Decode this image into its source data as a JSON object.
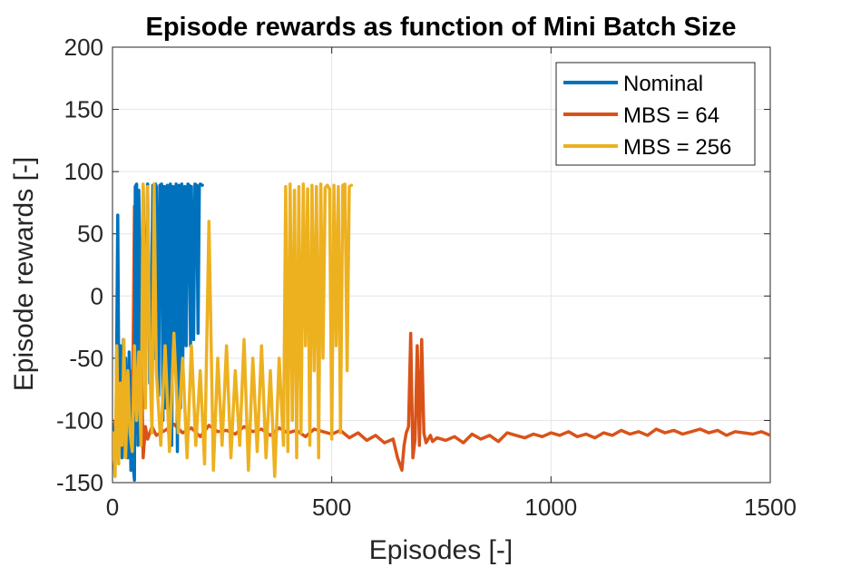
{
  "chart_data": {
    "type": "line",
    "title": "Episode rewards as function of Mini Batch Size",
    "xlabel": "Episodes [-]",
    "ylabel": "Episode rewards [-]",
    "xlim": [
      0,
      1500
    ],
    "ylim": [
      -150,
      200
    ],
    "xticks": [
      0,
      500,
      1000,
      1500
    ],
    "yticks": [
      -150,
      -100,
      -50,
      0,
      50,
      100,
      150,
      200
    ],
    "xtick_labels": [
      "0",
      "500",
      "1000",
      "1500"
    ],
    "ytick_labels": [
      "-150",
      "-100",
      "-50",
      "0",
      "50",
      "100",
      "150",
      "200"
    ],
    "grid": true,
    "legend_position": "top-right",
    "series": [
      {
        "name": "Nominal",
        "color": "#0072BD",
        "x": [
          0,
          8,
          12,
          15,
          18,
          22,
          25,
          28,
          30,
          35,
          38,
          42,
          45,
          48,
          50,
          52,
          55,
          58,
          60,
          65,
          70,
          75,
          80,
          85,
          88,
          92,
          95,
          98,
          100,
          105,
          108,
          112,
          115,
          118,
          120,
          125,
          128,
          132,
          135,
          138,
          140,
          145,
          148,
          152,
          155,
          158,
          160,
          165,
          168,
          172,
          175,
          178,
          180,
          185,
          188,
          192,
          195,
          198,
          200,
          205
        ],
        "y": [
          -105,
          -110,
          65,
          -120,
          -40,
          -130,
          -35,
          -120,
          -50,
          -130,
          -45,
          -140,
          -125,
          -140,
          -148,
          88,
          90,
          -120,
          85,
          -60,
          88,
          -40,
          90,
          -70,
          -30,
          89,
          -50,
          90,
          88,
          -80,
          89,
          90,
          -100,
          88,
          -90,
          89,
          -110,
          90,
          -120,
          88,
          -60,
          90,
          -125,
          89,
          -90,
          90,
          -60,
          88,
          -40,
          90,
          89,
          -40,
          88,
          -35,
          90,
          89,
          -30,
          88,
          90,
          89
        ]
      },
      {
        "name": "MBS = 64",
        "color": "#D95319",
        "x": [
          0,
          10,
          20,
          30,
          35,
          40,
          45,
          50,
          55,
          60,
          65,
          70,
          75,
          80,
          90,
          100,
          120,
          140,
          160,
          180,
          200,
          220,
          240,
          260,
          280,
          300,
          320,
          340,
          360,
          380,
          400,
          420,
          440,
          460,
          480,
          500,
          520,
          540,
          560,
          580,
          600,
          620,
          640,
          650,
          660,
          665,
          670,
          675,
          680,
          685,
          690,
          695,
          700,
          705,
          710,
          715,
          720,
          725,
          730,
          740,
          760,
          780,
          800,
          820,
          840,
          860,
          880,
          900,
          920,
          940,
          960,
          980,
          1000,
          1020,
          1040,
          1060,
          1080,
          1100,
          1120,
          1140,
          1160,
          1180,
          1200,
          1220,
          1240,
          1260,
          1280,
          1300,
          1320,
          1340,
          1360,
          1380,
          1400,
          1420,
          1440,
          1460,
          1480,
          1500
        ],
        "y": [
          -110,
          -95,
          -115,
          -100,
          -125,
          -60,
          -120,
          72,
          -110,
          -40,
          -30,
          -130,
          -105,
          -115,
          -105,
          -112,
          -108,
          -103,
          -110,
          -106,
          -113,
          -104,
          -109,
          -108,
          -111,
          -105,
          -109,
          -107,
          -112,
          -106,
          -110,
          -108,
          -113,
          -107,
          -109,
          -111,
          -108,
          -114,
          -110,
          -116,
          -112,
          -118,
          -115,
          -130,
          -140,
          -120,
          -110,
          -105,
          -30,
          -130,
          -115,
          -40,
          -120,
          -35,
          -110,
          -118,
          -115,
          -112,
          -117,
          -114,
          -116,
          -113,
          -118,
          -111,
          -115,
          -112,
          -117,
          -110,
          -112,
          -114,
          -111,
          -113,
          -110,
          -112,
          -109,
          -113,
          -111,
          -114,
          -110,
          -112,
          -108,
          -111,
          -109,
          -112,
          -107,
          -110,
          -108,
          -111,
          -109,
          -107,
          -110,
          -108,
          -112,
          -109,
          -110,
          -111,
          -109,
          -112
        ]
      },
      {
        "name": "MBS = 256",
        "color": "#EDB120",
        "x": [
          0,
          6,
          10,
          14,
          18,
          22,
          26,
          30,
          35,
          40,
          45,
          50,
          55,
          60,
          65,
          70,
          75,
          80,
          85,
          90,
          95,
          100,
          110,
          120,
          130,
          140,
          150,
          160,
          170,
          180,
          190,
          200,
          210,
          220,
          230,
          240,
          250,
          260,
          270,
          280,
          290,
          300,
          310,
          320,
          330,
          340,
          350,
          360,
          370,
          380,
          390,
          395,
          400,
          405,
          410,
          415,
          420,
          425,
          430,
          435,
          440,
          445,
          450,
          455,
          460,
          465,
          470,
          475,
          480,
          485,
          490,
          495,
          500,
          505,
          510,
          515,
          520,
          525,
          530,
          535,
          540,
          545
        ],
        "y": [
          -110,
          -145,
          -40,
          -135,
          -70,
          -120,
          -35,
          -130,
          -60,
          -110,
          -125,
          -40,
          -100,
          -45,
          -120,
          90,
          -90,
          88,
          -50,
          -110,
          90,
          -60,
          -120,
          -40,
          -125,
          -30,
          -110,
          -50,
          -130,
          -40,
          -120,
          -60,
          -135,
          60,
          -140,
          -50,
          -120,
          -40,
          -130,
          -60,
          -120,
          -35,
          -140,
          -50,
          -125,
          -40,
          -130,
          -60,
          -145,
          -50,
          -120,
          88,
          -125,
          90,
          -100,
          85,
          -130,
          88,
          -110,
          90,
          -40,
          86,
          -120,
          89,
          -60,
          88,
          -130,
          90,
          -50,
          87,
          89,
          86,
          -115,
          89,
          -40,
          88,
          -110,
          89,
          90,
          -60,
          88,
          89
        ]
      }
    ]
  }
}
